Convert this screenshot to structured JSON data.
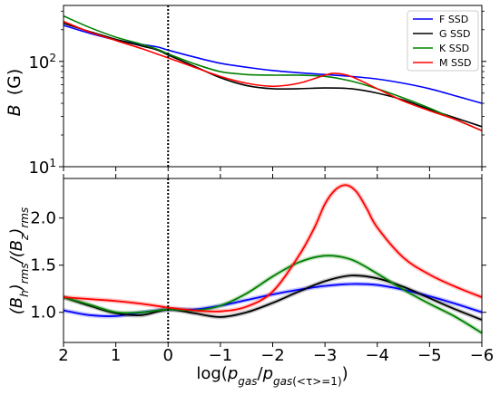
{
  "chart_data": [
    {
      "type": "line",
      "ylabel_parts": {
        "main": "B",
        "unit": "(G)"
      },
      "yscale": "log",
      "ylim": [
        10,
        340
      ],
      "xlim": [
        2,
        -6
      ],
      "x_inverted": true,
      "yticks": [
        {
          "value": 10,
          "base": "10",
          "exp": "1"
        },
        {
          "value": 100,
          "base": "10",
          "exp": "2"
        }
      ],
      "legend": {
        "placement": "top-right",
        "entries": [
          "F SSD",
          "G SSD",
          "K SSD",
          "M SSD"
        ]
      },
      "vline": {
        "x": 0,
        "style": "dotted",
        "color": "#000000"
      },
      "series": [
        {
          "name": "F SSD",
          "color": "#0000ff",
          "x": [
            2,
            1.5,
            1,
            0.5,
            0.2,
            0,
            -0.5,
            -1,
            -1.5,
            -2,
            -2.5,
            -3,
            -3.5,
            -4,
            -4.5,
            -5,
            -5.5,
            -6
          ],
          "y": [
            220,
            185,
            160,
            145,
            137,
            128,
            110,
            96,
            88,
            82,
            78,
            75,
            72,
            68,
            62,
            55,
            47,
            40
          ]
        },
        {
          "name": "G SSD",
          "color": "#000000",
          "x": [
            2,
            1.5,
            1,
            0.5,
            0.2,
            0,
            -0.5,
            -1,
            -1.5,
            -2,
            -2.5,
            -3,
            -3.5,
            -4,
            -4.5,
            -5,
            -5.5,
            -6
          ],
          "y": [
            230,
            192,
            162,
            140,
            128,
            115,
            90,
            70,
            59,
            55,
            55,
            56,
            55,
            50,
            43,
            35,
            29,
            24
          ]
        },
        {
          "name": "K SSD",
          "color": "#008000",
          "x": [
            2,
            1.5,
            1,
            0.5,
            0.2,
            0,
            -0.5,
            -1,
            -1.5,
            -2,
            -2.5,
            -3,
            -3.5,
            -4,
            -4.5,
            -5,
            -5.5,
            -6
          ],
          "y": [
            270,
            210,
            170,
            145,
            130,
            118,
            95,
            80,
            75,
            74,
            74,
            72,
            65,
            55,
            45,
            36,
            28,
            22
          ]
        },
        {
          "name": "M SSD",
          "color": "#ff0000",
          "x": [
            2,
            1.5,
            1,
            0.5,
            0.2,
            0,
            -0.5,
            -1,
            -1.5,
            -2,
            -2.5,
            -3,
            -3.2,
            -3.5,
            -4,
            -4.5,
            -5,
            -5.5,
            -6
          ],
          "y": [
            240,
            190,
            158,
            132,
            117,
            108,
            88,
            72,
            62,
            58,
            62,
            74,
            77,
            72,
            55,
            42,
            34,
            28,
            22
          ]
        }
      ]
    },
    {
      "type": "line",
      "ylabel": "(B_h)_rms/(B_z)_rms",
      "xlabel": "log(p_gas/p_gas(<τ>=1))",
      "ylim": [
        0.68,
        2.42
      ],
      "xlim": [
        2,
        -6
      ],
      "x_inverted": true,
      "yticks": [
        1.0,
        1.5,
        2.0
      ],
      "xticks": [
        2,
        1,
        0,
        -1,
        -2,
        -3,
        -4,
        -5,
        -6
      ],
      "xtick_labels": [
        "2",
        "1",
        "0",
        "−1",
        "−2",
        "−3",
        "−4",
        "−5",
        "−6"
      ],
      "vline": {
        "x": 0,
        "style": "dotted",
        "color": "#000000"
      },
      "series": [
        {
          "name": "F SSD",
          "color": "#0000ff",
          "x": [
            2,
            1.5,
            1,
            0.5,
            0,
            -0.5,
            -1,
            -1.5,
            -2,
            -2.5,
            -3,
            -3.5,
            -4,
            -4.5,
            -5,
            -5.5,
            -6
          ],
          "y": [
            1.02,
            0.97,
            0.96,
            1.0,
            1.03,
            1.03,
            1.07,
            1.13,
            1.19,
            1.24,
            1.28,
            1.3,
            1.29,
            1.24,
            1.17,
            1.09,
            1.0
          ]
        },
        {
          "name": "G SSD",
          "color": "#000000",
          "x": [
            2,
            1.5,
            1,
            0.5,
            0,
            -0.5,
            -1,
            -1.5,
            -2,
            -2.5,
            -3,
            -3.5,
            -4,
            -4.5,
            -5,
            -5.5,
            -6
          ],
          "y": [
            1.16,
            1.07,
            0.99,
            0.97,
            1.03,
            0.99,
            0.95,
            1.0,
            1.1,
            1.22,
            1.33,
            1.39,
            1.36,
            1.27,
            1.15,
            1.03,
            0.92
          ]
        },
        {
          "name": "K SSD",
          "color": "#008000",
          "x": [
            2,
            1.5,
            1,
            0.5,
            0,
            -0.5,
            -1,
            -1.5,
            -2,
            -2.5,
            -3,
            -3.5,
            -4,
            -4.5,
            -5,
            -5.5,
            -6
          ],
          "y": [
            1.16,
            1.08,
            1.0,
            1.0,
            1.03,
            1.02,
            1.07,
            1.2,
            1.38,
            1.53,
            1.6,
            1.56,
            1.41,
            1.24,
            1.09,
            0.95,
            0.78
          ]
        },
        {
          "name": "M SSD",
          "color": "#ff0000",
          "x": [
            2,
            1.5,
            1,
            0.5,
            0,
            -0.5,
            -1,
            -1.5,
            -2,
            -2.5,
            -2.8,
            -3,
            -3.2,
            -3.4,
            -3.6,
            -3.8,
            -4,
            -4.5,
            -5,
            -5.5,
            -6
          ],
          "y": [
            1.16,
            1.14,
            1.12,
            1.09,
            1.05,
            1.02,
            1.01,
            1.06,
            1.22,
            1.6,
            1.9,
            2.15,
            2.3,
            2.35,
            2.28,
            2.1,
            1.9,
            1.58,
            1.4,
            1.27,
            1.16
          ]
        }
      ]
    }
  ]
}
